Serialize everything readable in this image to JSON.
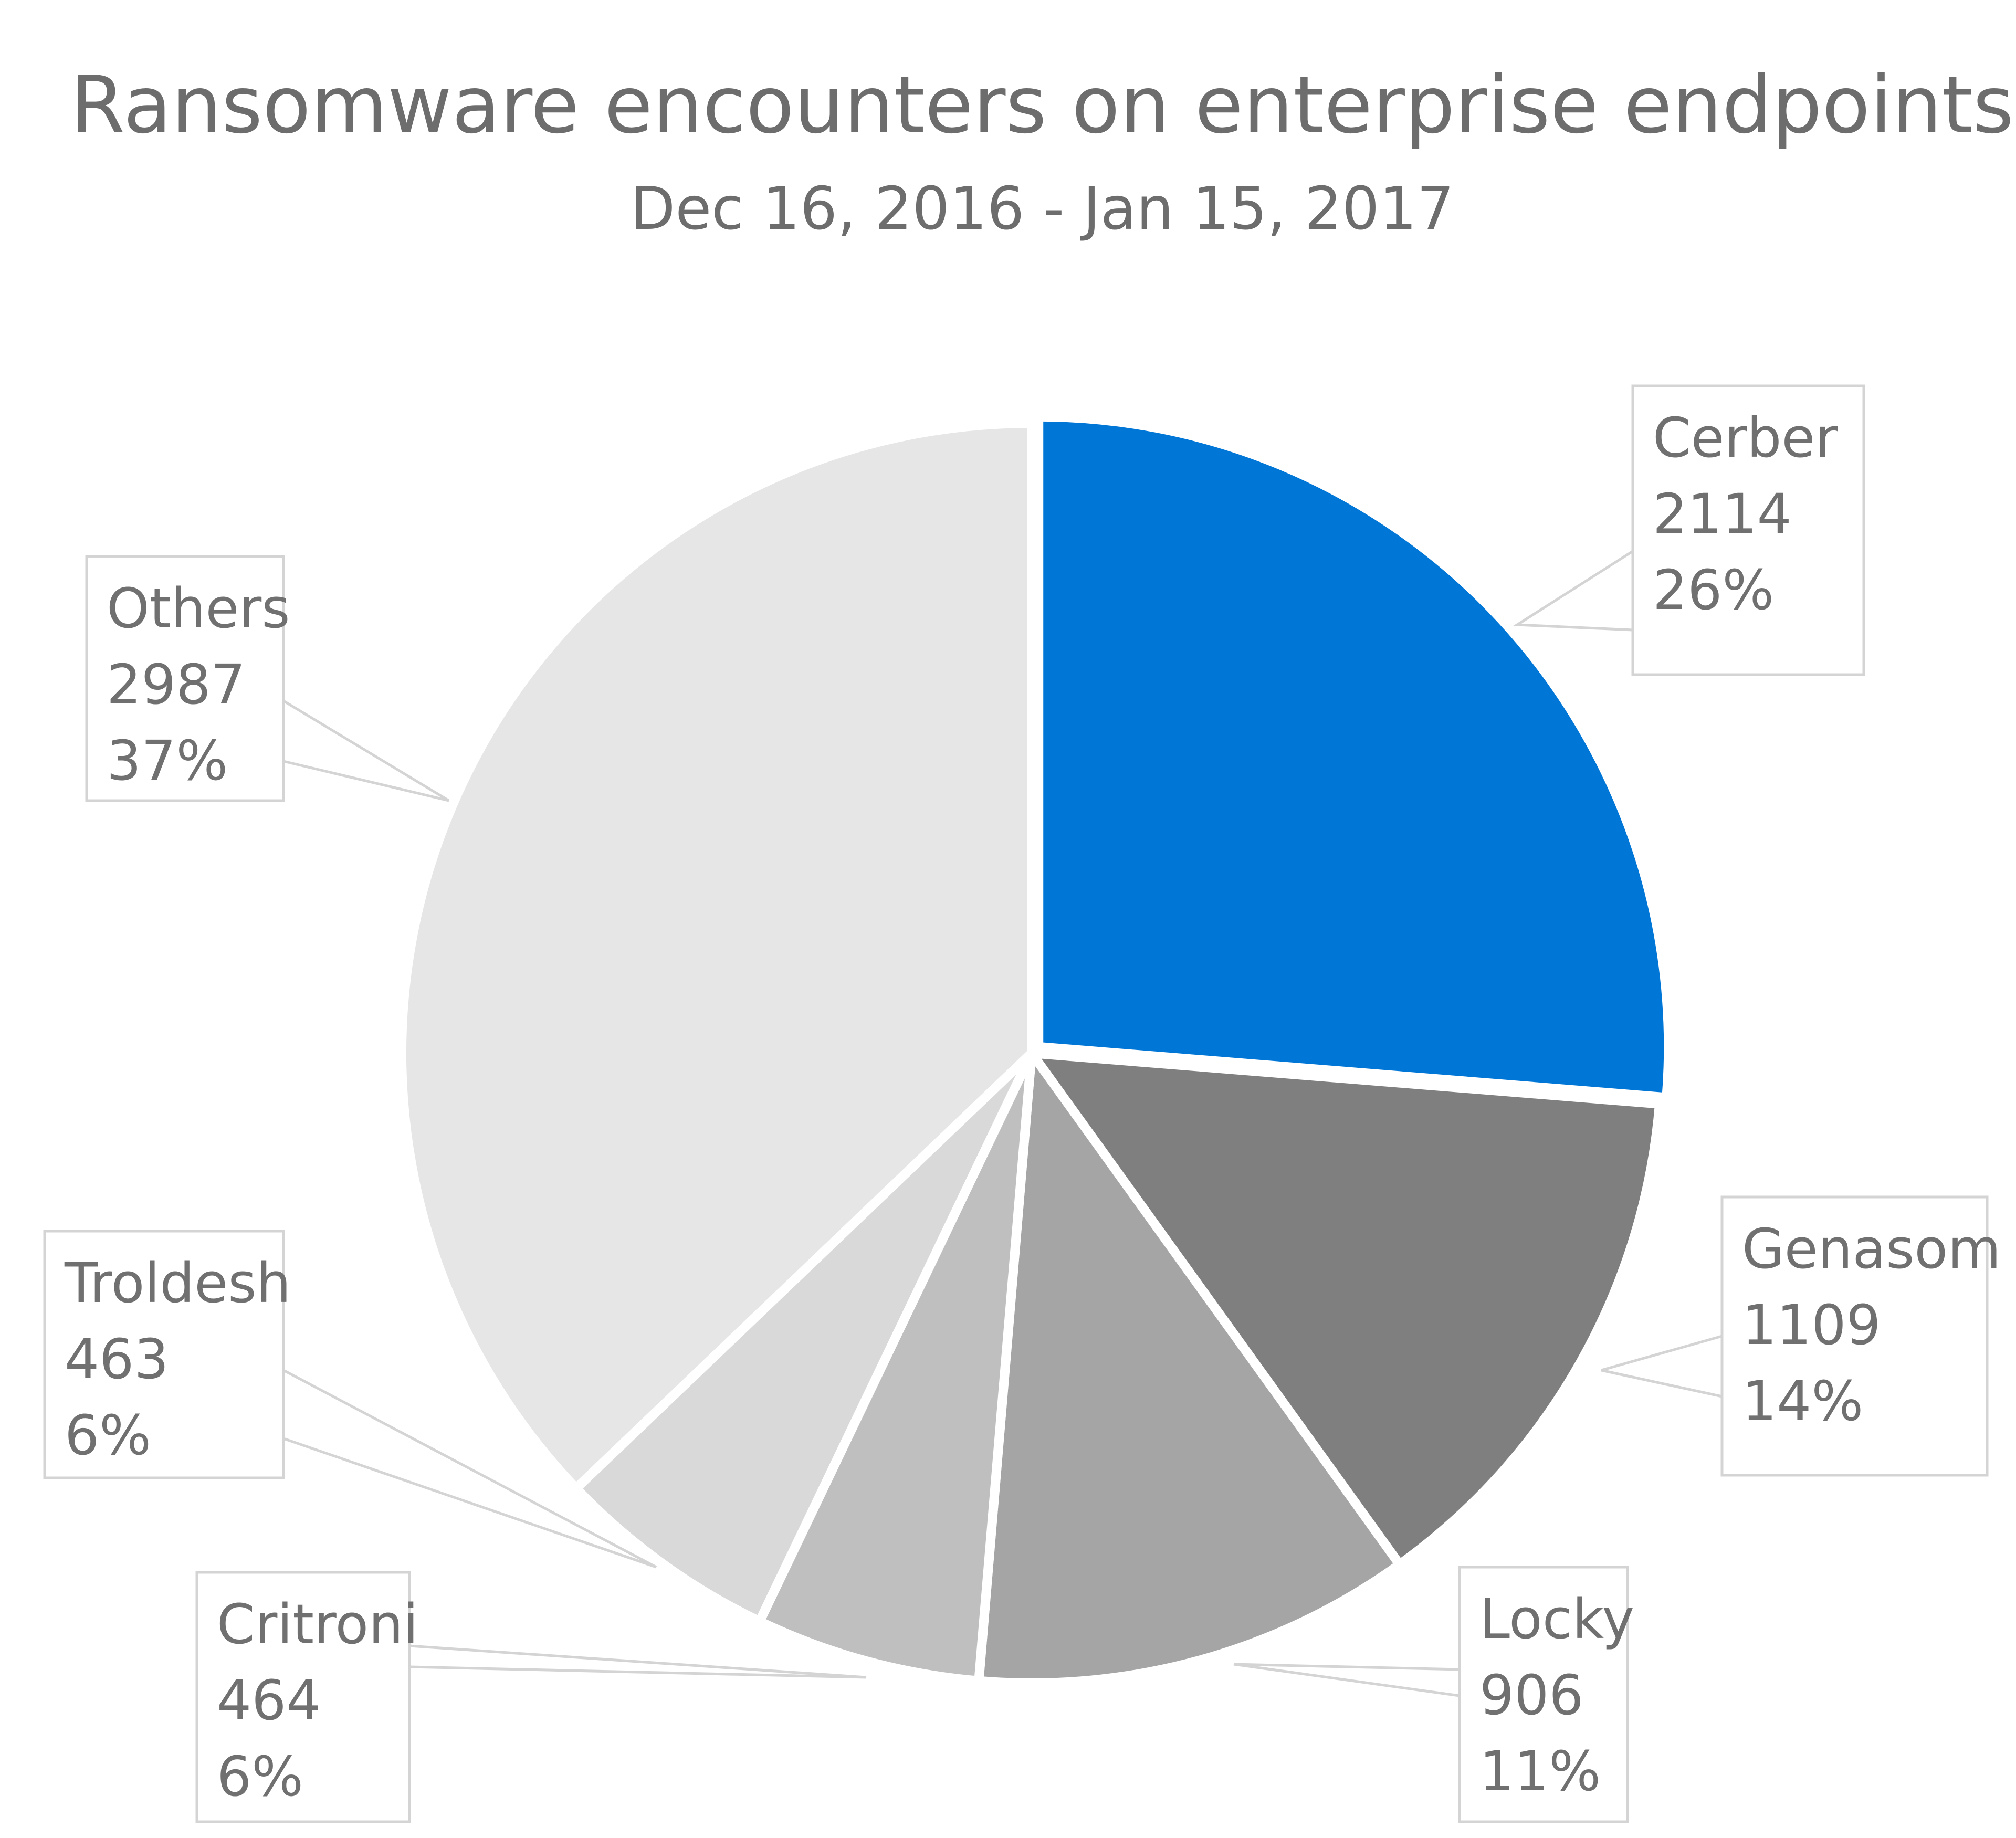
{
  "chart_data": {
    "type": "pie",
    "title": "Ransomware encounters on enterprise endpoints",
    "subtitle": "Dec 16, 2016 - Jan 15, 2017",
    "slices": [
      {
        "label": "Cerber",
        "value": 2114,
        "percent": "26%",
        "color": "#0076d7"
      },
      {
        "label": "Genasom",
        "value": 1109,
        "percent": "14%",
        "color": "#7f7f7f"
      },
      {
        "label": "Locky",
        "value": 906,
        "percent": "11%",
        "color": "#a5a5a5"
      },
      {
        "label": "Critroni",
        "value": 464,
        "percent": "6%",
        "color": "#bfbfbf"
      },
      {
        "label": "Troldesh",
        "value": 463,
        "percent": "6%",
        "color": "#d9d9d9"
      },
      {
        "label": "Others",
        "value": 2987,
        "percent": "37%",
        "color": "#e6e6e6"
      }
    ],
    "start_angle": "12 o'clock",
    "direction": "clockwise",
    "legend": "none",
    "data_labels": "callouts with category, value and percentage"
  }
}
